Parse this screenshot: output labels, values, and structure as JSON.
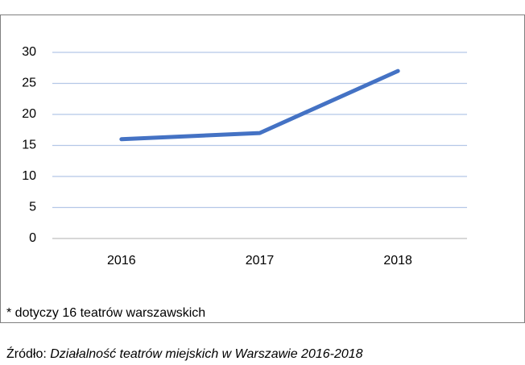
{
  "chart_data": {
    "type": "line",
    "categories": [
      "2016",
      "2017",
      "2018"
    ],
    "values": [
      16,
      17,
      27
    ],
    "color": "#4472c4",
    "ylim": [
      0,
      30
    ],
    "yticks": [
      0,
      5,
      10,
      15,
      20,
      25,
      30
    ],
    "grid": true,
    "footnote": "* dotyczy 16 teatrów warszawskich",
    "source_label": "Źródło: ",
    "source_title": "Działalność teatrów miejskich w Warszawie 2016-2018"
  }
}
